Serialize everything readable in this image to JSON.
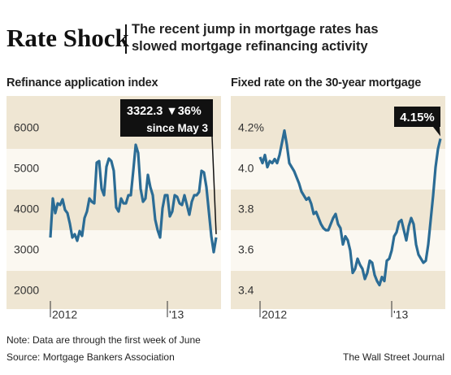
{
  "title": "Rate Shock",
  "subtitle": [
    "The recent jump in mortgage rates has",
    "slowed mortgage refinancing activity"
  ],
  "note": "Note: Data are through the first week of June",
  "source": "Source: Mortgage Bankers Association",
  "credit": "The Wall Street Journal",
  "chart_data": [
    {
      "type": "line",
      "title": "Refinance application index",
      "color": "#2b6c95",
      "categories": [
        "2012",
        null,
        null,
        null,
        null,
        null,
        null,
        null,
        null,
        null,
        null,
        null,
        null,
        null,
        null,
        null,
        null,
        null,
        null,
        null,
        null,
        null,
        null,
        null,
        null,
        null,
        null,
        null,
        null,
        null,
        null,
        null,
        null,
        null,
        null,
        null,
        null,
        null,
        null,
        null,
        null,
        null,
        null,
        null,
        null,
        null,
        null,
        null,
        "'13",
        null,
        null,
        null,
        null,
        null,
        null,
        null,
        null,
        null,
        null,
        null,
        null,
        null,
        null,
        null,
        null,
        null,
        null,
        null,
        null
      ],
      "values": [
        3320,
        4280,
        3920,
        4160,
        4120,
        4260,
        4000,
        3920,
        3660,
        3320,
        3400,
        3240,
        3480,
        3360,
        3800,
        3960,
        4280,
        4200,
        4160,
        5160,
        5200,
        4520,
        4360,
        5060,
        5260,
        5200,
        4960,
        4060,
        3960,
        4280,
        4160,
        4160,
        4360,
        4360,
        4960,
        5600,
        5400,
        4520,
        4200,
        4280,
        4860,
        4560,
        4360,
        3760,
        3500,
        3320,
        4040,
        4360,
        4360,
        3840,
        3960,
        4360,
        4320,
        4160,
        4120,
        4360,
        4120,
        3880,
        4200,
        4360,
        4360,
        4440,
        4960,
        4920,
        4560,
        3960,
        3360,
        2960,
        3322.3
      ],
      "ylim": [
        1560,
        6800
      ],
      "yticks": [
        2000,
        3000,
        4000,
        5000,
        6000
      ],
      "annotation": [
        "3322.3 ▼36%",
        "since May 3"
      ]
    },
    {
      "type": "line",
      "title": "Fixed rate on the 30-year mortgage",
      "color": "#2b6c95",
      "categories": [
        "2012",
        null,
        null,
        null,
        null,
        null,
        null,
        null,
        null,
        null,
        null,
        null,
        null,
        null,
        null,
        null,
        null,
        null,
        null,
        null,
        null,
        null,
        null,
        null,
        null,
        null,
        null,
        null,
        null,
        null,
        null,
        null,
        null,
        null,
        null,
        null,
        null,
        null,
        null,
        null,
        null,
        null,
        null,
        null,
        null,
        null,
        null,
        null,
        null,
        null,
        null,
        null,
        null,
        null,
        "'13",
        null,
        null,
        null,
        null,
        null,
        null,
        null,
        null,
        null,
        null,
        null,
        null,
        null,
        null,
        null,
        null,
        null,
        null,
        null,
        null
      ],
      "values": [
        4.06,
        4.03,
        4.07,
        4.01,
        4.04,
        4.03,
        4.05,
        4.03,
        4.07,
        4.13,
        4.19,
        4.12,
        4.03,
        4.01,
        3.99,
        3.96,
        3.93,
        3.89,
        3.87,
        3.85,
        3.86,
        3.83,
        3.78,
        3.79,
        3.76,
        3.73,
        3.71,
        3.7,
        3.7,
        3.73,
        3.76,
        3.78,
        3.73,
        3.71,
        3.63,
        3.67,
        3.65,
        3.6,
        3.49,
        3.51,
        3.56,
        3.53,
        3.51,
        3.46,
        3.49,
        3.55,
        3.54,
        3.48,
        3.45,
        3.43,
        3.47,
        3.45,
        3.55,
        3.56,
        3.6,
        3.67,
        3.69,
        3.74,
        3.75,
        3.7,
        3.65,
        3.72,
        3.76,
        3.73,
        3.63,
        3.58,
        3.56,
        3.54,
        3.55,
        3.63,
        3.75,
        3.87,
        4.01,
        4.1,
        4.15
      ],
      "ylim": [
        3.312,
        4.36
      ],
      "yticks": [
        3.4,
        3.6,
        3.8,
        {
          "value": 4,
          "label": "4.0"
        },
        {
          "value": 4.2,
          "label": "4.2%"
        }
      ],
      "annotation": [
        "4.15%"
      ]
    }
  ]
}
